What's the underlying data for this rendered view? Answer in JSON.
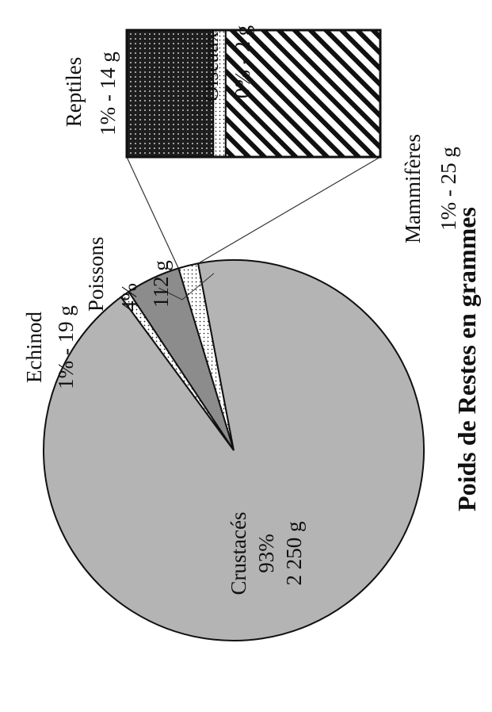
{
  "chart_data": {
    "type": "pie",
    "title": "Poids de Restes en grammes",
    "slices": [
      {
        "name": "Crustacés",
        "percent_label": "93%",
        "weight_label": "2 250 g",
        "value": 2250,
        "fill": "#b4b4b4"
      },
      {
        "name": "Echinod",
        "percent_label": "1%",
        "weight_label": "19 g",
        "value": 19,
        "fill": "#ffffff"
      },
      {
        "name": "Poissons",
        "percent_label": "4%",
        "weight_label": "112 g",
        "value": 112,
        "fill": "#8c8c8c"
      },
      {
        "name": "Reptiles",
        "percent_label": "1%",
        "weight_label": "14 g",
        "value": 14,
        "fill": "#1e1e1e"
      },
      {
        "name": "Oiseaux",
        "percent_label": "0%",
        "weight_label": "2 g",
        "value": 2,
        "fill": "#ffffff"
      },
      {
        "name": "Mammifères",
        "percent_label": "1%",
        "weight_label": "25 g",
        "value": 25,
        "fill": "#ffffff"
      }
    ],
    "labels": {
      "crustaces": {
        "name": "Crustacés",
        "pct": "93%",
        "weight": "2 250 g"
      },
      "echinod": {
        "name": "Echinod",
        "detail": "1% - 19 g"
      },
      "poissons": {
        "name": "Poissons",
        "pct": "4%",
        "weight": "112 g"
      },
      "reptiles": {
        "name": "Reptiles",
        "detail": "1% - 14 g"
      },
      "oiseaux": {
        "name": "Oiseaux",
        "detail": "0% - 2 g"
      },
      "mammiferes": {
        "name": "Mammifères",
        "detail": "1% - 25 g"
      }
    },
    "breakout": {
      "type": "bar-of-pie",
      "categories": [
        "Reptiles",
        "Oiseaux",
        "Mammifères"
      ],
      "values": [
        14,
        2,
        25
      ],
      "patterns": [
        "dots-dark",
        "dots-light",
        "diagonal-stripes"
      ]
    },
    "orientation": "rotated 90° counter-clockwise"
  }
}
